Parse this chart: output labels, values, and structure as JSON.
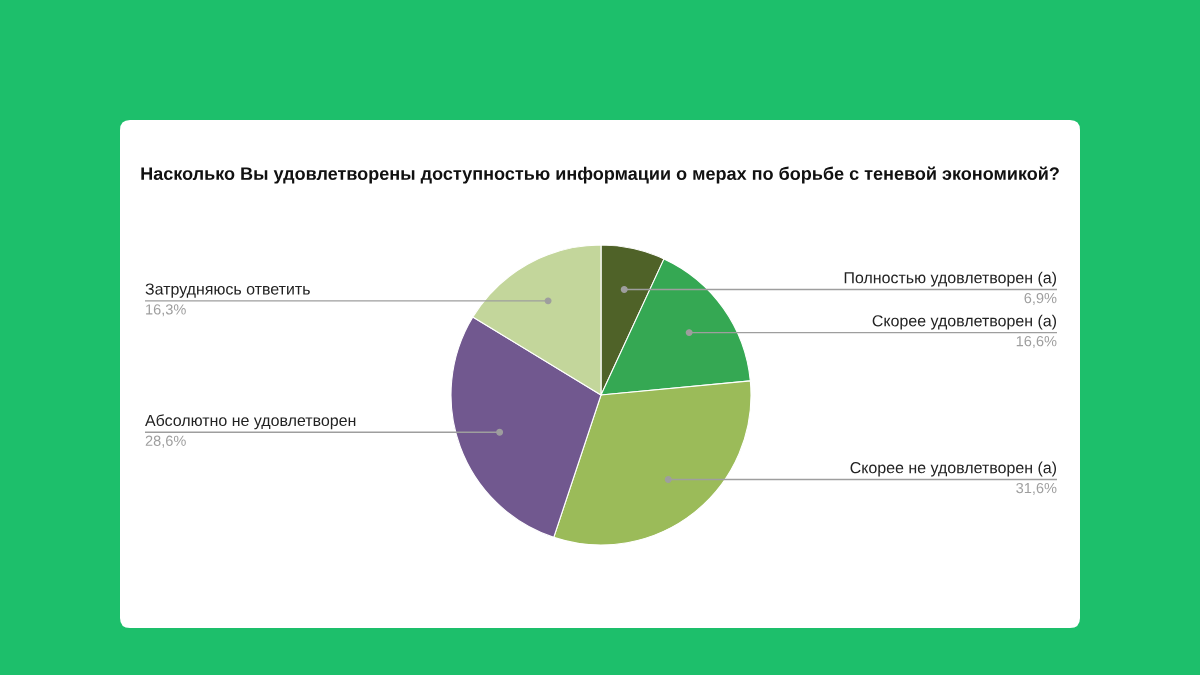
{
  "chart_data": {
    "type": "pie",
    "title": "Насколько Вы удовлетворены доступностью информации о мерах по борьбе с теневой экономикой?",
    "categories": [
      "Полностью удовлетворен (а)",
      "Скорее удовлетворен (а)",
      "Скорее не удовлетворен (а)",
      "Абсолютно не удовлетворен",
      "Затрудняюсь ответить"
    ],
    "values": [
      6.9,
      16.6,
      31.6,
      28.6,
      16.3
    ],
    "colors": [
      "#4f6228",
      "#35a853",
      "#9bbb59",
      "#71588f",
      "#c3d69b"
    ],
    "value_labels": [
      "6,9%",
      "16,6%",
      "31,6%",
      "28,6%",
      "16,3%"
    ]
  }
}
